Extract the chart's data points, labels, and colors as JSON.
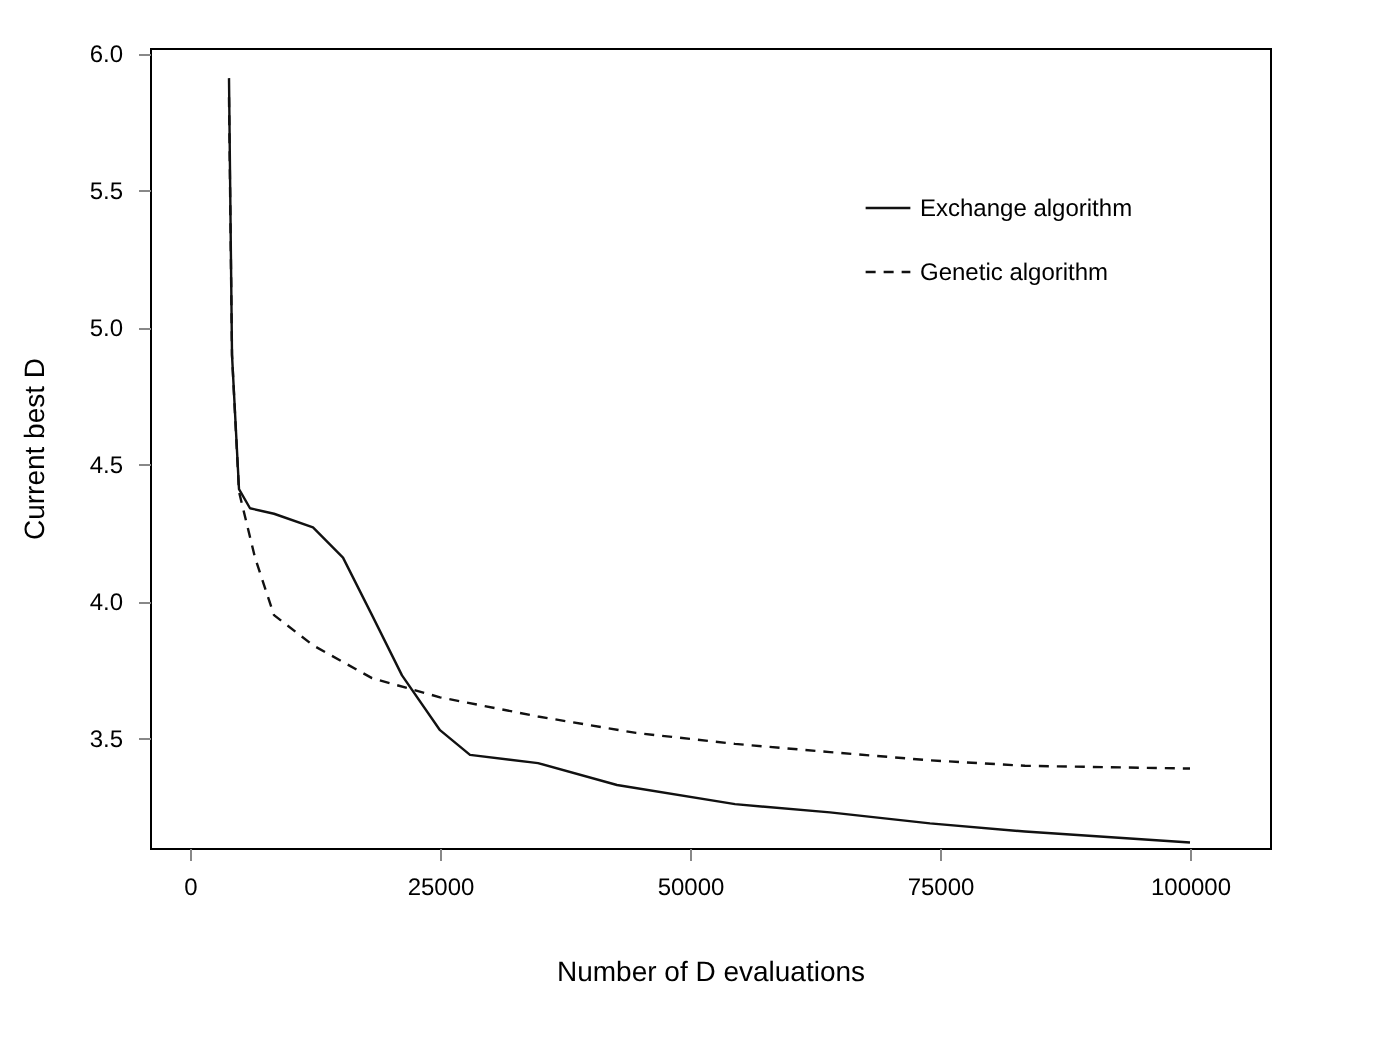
{
  "chart_data": {
    "type": "line",
    "xlabel": "Number of D evaluations",
    "ylabel": "Current best D",
    "xlim": [
      -4000,
      108000
    ],
    "ylim": [
      3.1,
      6.02
    ],
    "xticks": [
      0,
      25000,
      50000,
      75000,
      100000
    ],
    "yticks": [
      {
        "value": 3.5,
        "label": "3.5"
      },
      {
        "value": 4,
        "label": "4.0"
      },
      {
        "value": 4.5,
        "label": "4.5"
      },
      {
        "value": 5,
        "label": "5.0"
      },
      {
        "value": 5.5,
        "label": "5.5"
      },
      {
        "value": 6,
        "label": "6.0"
      }
    ],
    "grid": false,
    "legend": "top right",
    "marker": "none",
    "series": [
      {
        "name": "Exchange algorithm",
        "color": "#111111",
        "line_style": "solid",
        "x": [
          3900,
          4200,
          4900,
          6000,
          8400,
          12300,
          15300,
          18200,
          21200,
          25000,
          28000,
          34800,
          42700,
          54500,
          64000,
          74000,
          83500,
          100000
        ],
        "values": [
          5.91,
          4.9,
          4.41,
          4.34,
          4.32,
          4.27,
          4.16,
          3.95,
          3.73,
          3.53,
          3.44,
          3.41,
          3.33,
          3.26,
          3.23,
          3.19,
          3.16,
          3.12
        ]
      },
      {
        "name": "Genetic algorithm",
        "color": "#111111",
        "line_style": "dashed",
        "x": [
          3900,
          4200,
          4900,
          6500,
          8400,
          12300,
          18200,
          25000,
          34800,
          44600,
          54500,
          64000,
          74000,
          83500,
          100000
        ],
        "values": [
          5.84,
          4.9,
          4.4,
          4.16,
          3.95,
          3.84,
          3.72,
          3.65,
          3.58,
          3.52,
          3.48,
          3.45,
          3.42,
          3.4,
          3.39
        ]
      }
    ]
  }
}
